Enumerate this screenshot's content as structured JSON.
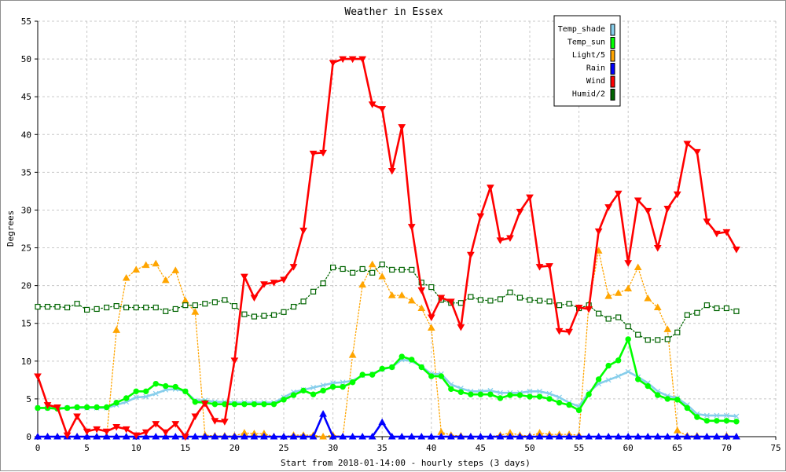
{
  "chart_data": {
    "type": "line",
    "title": "Weather in Essex",
    "xlabel": "Start from 2018-01-14:00 - hourly steps (3 days)",
    "ylabel": "Degrees",
    "xlim": [
      0,
      75
    ],
    "ylim": [
      0,
      55
    ],
    "x_ticks": [
      0,
      5,
      10,
      15,
      20,
      25,
      30,
      35,
      40,
      45,
      50,
      55,
      60,
      65,
      70,
      75
    ],
    "y_ticks": [
      0,
      5,
      10,
      15,
      20,
      25,
      30,
      35,
      40,
      45,
      50,
      55
    ],
    "grid": true,
    "legend_position": "top-right",
    "x": [
      0,
      1,
      2,
      3,
      4,
      5,
      6,
      7,
      8,
      9,
      10,
      11,
      12,
      13,
      14,
      15,
      16,
      17,
      18,
      19,
      20,
      21,
      22,
      23,
      24,
      25,
      26,
      27,
      28,
      29,
      30,
      31,
      32,
      33,
      34,
      35,
      36,
      37,
      38,
      39,
      40,
      41,
      42,
      43,
      44,
      45,
      46,
      47,
      48,
      49,
      50,
      51,
      52,
      53,
      54,
      55,
      56,
      57,
      58,
      59,
      60,
      61,
      62,
      63,
      64,
      65,
      66,
      67,
      68,
      69,
      70,
      71
    ],
    "series": [
      {
        "name": "Temp_shade",
        "color": "#87ceeb",
        "marker": "x",
        "line_style": "solid",
        "values": [
          3.8,
          3.8,
          3.8,
          3.8,
          3.8,
          3.8,
          3.8,
          3.8,
          4.2,
          4.6,
          5.2,
          5.3,
          5.7,
          6.2,
          6.3,
          6.0,
          4.8,
          4.8,
          4.6,
          4.6,
          4.5,
          4.5,
          4.5,
          4.5,
          4.5,
          5.2,
          5.9,
          6.2,
          6.5,
          6.8,
          7.1,
          7.2,
          7.4,
          8.1,
          8.3,
          8.9,
          9.2,
          10.2,
          10.0,
          9.3,
          8.3,
          8.3,
          6.9,
          6.4,
          6.0,
          6.0,
          6.1,
          5.8,
          5.8,
          5.8,
          6.0,
          6.0,
          5.7,
          5.2,
          4.5,
          4.0,
          5.9,
          7.0,
          7.5,
          8.0,
          8.6,
          7.9,
          7.1,
          6.0,
          5.4,
          5.1,
          4.2,
          3.0,
          2.8,
          2.8,
          2.8,
          2.7
        ]
      },
      {
        "name": "Temp_sun",
        "color": "#00ff00",
        "marker": "circle",
        "line_style": "solid",
        "values": [
          3.8,
          3.8,
          3.7,
          3.8,
          3.9,
          3.9,
          3.9,
          3.9,
          4.5,
          5.1,
          6.0,
          6.0,
          7.0,
          6.7,
          6.6,
          6.0,
          4.6,
          4.5,
          4.3,
          4.3,
          4.3,
          4.3,
          4.3,
          4.3,
          4.3,
          4.9,
          5.5,
          6.1,
          5.6,
          6.1,
          6.6,
          6.6,
          7.2,
          8.2,
          8.2,
          9.0,
          9.2,
          10.6,
          10.2,
          9.2,
          8.0,
          8.0,
          6.3,
          5.9,
          5.6,
          5.6,
          5.6,
          5.1,
          5.5,
          5.5,
          5.3,
          5.3,
          5.0,
          4.5,
          4.2,
          3.5,
          5.6,
          7.6,
          9.4,
          10.1,
          12.9,
          7.6,
          6.7,
          5.5,
          5.0,
          4.9,
          3.8,
          2.6,
          2.1,
          2.1,
          2.1,
          2.0
        ]
      },
      {
        "name": "Light/5",
        "color": "#ffa500",
        "marker": "triangle-up",
        "line_style": "dotted",
        "values": [
          0,
          0,
          0,
          0,
          0,
          0,
          0,
          0,
          14.1,
          21.0,
          22.1,
          22.7,
          22.9,
          20.7,
          22.0,
          18.0,
          16.5,
          0.2,
          0.1,
          0.1,
          0.1,
          0.5,
          0.4,
          0.4,
          0,
          0,
          0.2,
          0.2,
          0.2,
          0,
          0.2,
          0,
          10.8,
          20.1,
          22.8,
          21.2,
          18.7,
          18.7,
          18.0,
          17.0,
          14.4,
          0.6,
          0.2,
          0.1,
          0,
          0,
          0,
          0.2,
          0.5,
          0.2,
          0.1,
          0.5,
          0.3,
          0.3,
          0.3,
          0.2,
          17.5,
          24.6,
          18.6,
          19.0,
          19.6,
          22.4,
          18.3,
          17.1,
          14.2,
          0.8,
          0.1,
          0.1,
          0,
          0,
          0.1,
          0
        ]
      },
      {
        "name": "Rain",
        "color": "#0000ff",
        "marker": "triangle-up",
        "line_style": "solid",
        "values": [
          0,
          0,
          0,
          0,
          0,
          0,
          0,
          0,
          0,
          0,
          0,
          0,
          0,
          0,
          0,
          0,
          0,
          0,
          0,
          0,
          0,
          0,
          0,
          0,
          0,
          0,
          0,
          0,
          0,
          3.0,
          0,
          0,
          0,
          0,
          0,
          1.9,
          0,
          0,
          0,
          0,
          0,
          0,
          0,
          0,
          0,
          0,
          0,
          0,
          0,
          0,
          0,
          0,
          0,
          0,
          0,
          0,
          0,
          0,
          0,
          0,
          0,
          0,
          0,
          0,
          0,
          0,
          0,
          0,
          0,
          0,
          0,
          0
        ]
      },
      {
        "name": "Wind",
        "color": "#ff0000",
        "marker": "triangle-down",
        "line_style": "solid",
        "values": [
          8.0,
          4.2,
          3.9,
          0.2,
          2.7,
          0.7,
          1.0,
          0.7,
          1.3,
          1.0,
          0.2,
          0.6,
          1.7,
          0.6,
          1.7,
          0.0,
          2.7,
          4.4,
          2.1,
          2.0,
          10.1,
          21.2,
          18.4,
          20.2,
          20.4,
          20.8,
          22.5,
          27.3,
          37.5,
          37.6,
          49.5,
          50.0,
          50.0,
          50.0,
          44.0,
          43.4,
          35.2,
          41.0,
          27.8,
          19.4,
          15.8,
          18.4,
          17.9,
          14.5,
          24.1,
          29.2,
          33.0,
          26.0,
          26.3,
          29.8,
          31.7,
          22.5,
          22.6,
          14.0,
          13.9,
          17.1,
          16.9,
          27.2,
          30.4,
          32.2,
          23.0,
          31.3,
          29.9,
          25.0,
          30.2,
          32.1,
          38.8,
          37.7,
          28.5,
          26.9,
          27.1,
          24.8
        ]
      },
      {
        "name": "Humid/2",
        "color": "#006400",
        "marker": "square",
        "line_style": "dotted",
        "values": [
          17.2,
          17.2,
          17.2,
          17.1,
          17.6,
          16.8,
          16.9,
          17.1,
          17.3,
          17.1,
          17.1,
          17.1,
          17.1,
          16.6,
          16.9,
          17.4,
          17.4,
          17.6,
          17.8,
          18.1,
          17.3,
          16.2,
          15.9,
          16.0,
          16.1,
          16.5,
          17.2,
          17.9,
          19.2,
          20.3,
          22.4,
          22.2,
          21.7,
          22.2,
          21.7,
          22.8,
          22.1,
          22.1,
          22.1,
          20.4,
          19.8,
          18.1,
          17.7,
          17.7,
          18.5,
          18.1,
          18.0,
          18.2,
          19.1,
          18.4,
          18.1,
          18.0,
          17.9,
          17.4,
          17.6,
          17.0,
          17.4,
          16.3,
          15.6,
          15.8,
          14.6,
          13.5,
          12.8,
          12.8,
          12.9,
          13.8,
          16.1,
          16.4,
          17.4,
          17.0,
          17.0,
          16.6
        ]
      }
    ]
  }
}
